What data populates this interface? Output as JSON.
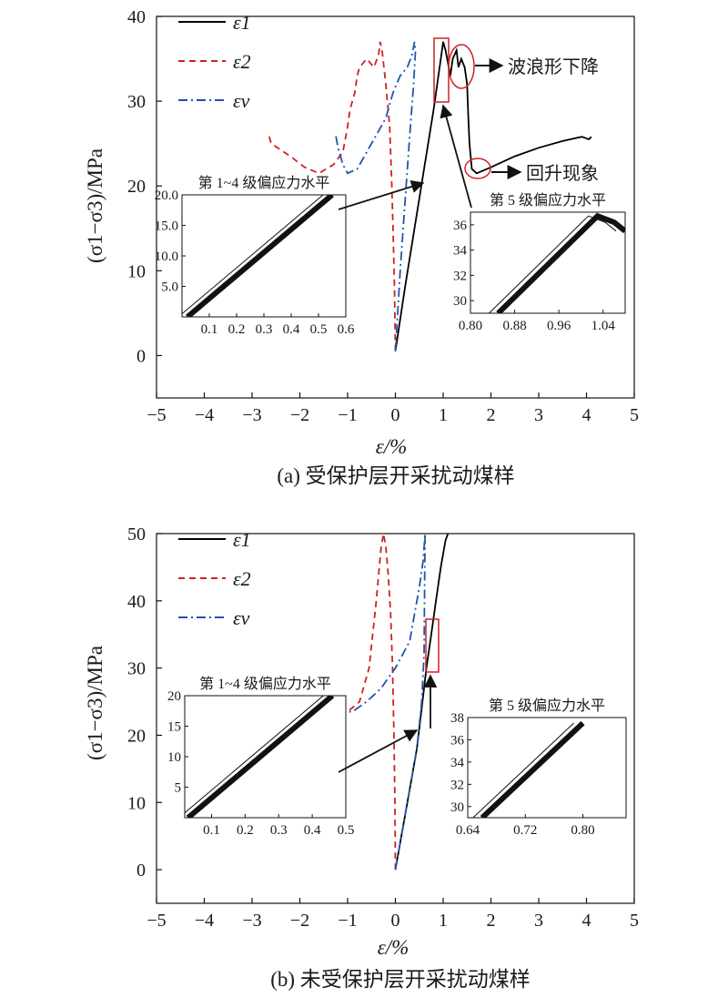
{
  "chart_data": [
    {
      "type": "line",
      "caption": "(a) 受保护层开采扰动煤样",
      "xlabel": "ε/%",
      "ylabel": "(σ1−σ3)/MPa",
      "xlim": [
        -5,
        5
      ],
      "ylim": [
        -5,
        40
      ],
      "xticks": [
        -5,
        -4,
        -3,
        -2,
        -1,
        0,
        1,
        2,
        3,
        4,
        5
      ],
      "yticks": [
        0,
        10,
        20,
        30,
        40
      ],
      "grid": false,
      "legend_position": "top-left",
      "series": [
        {
          "name": "ε1",
          "style": "solid",
          "color": "#000000",
          "x": [
            0,
            0.2,
            0.4,
            0.6,
            0.8,
            0.95,
            1.0,
            1.05,
            1.15,
            1.2,
            1.28,
            1.32,
            1.38,
            1.45,
            1.5,
            1.52,
            1.55,
            1.6,
            1.7,
            2.0,
            2.5,
            3.0,
            3.5,
            3.9,
            4.05,
            4.1
          ],
          "y": [
            0.5,
            8,
            15,
            22,
            29,
            35,
            37,
            36,
            33,
            35,
            36,
            34,
            35,
            34,
            32,
            29,
            25,
            22,
            21.5,
            22.2,
            23.5,
            24.5,
            25.3,
            25.8,
            25.5,
            25.8
          ]
        },
        {
          "name": "ε2",
          "style": "dashed",
          "color": "#cc2222",
          "x": [
            0,
            -0.02,
            -0.05,
            -0.08,
            -0.12,
            -0.2,
            -0.28,
            -0.32,
            -0.35,
            -0.45,
            -0.6,
            -0.75,
            -0.8,
            -0.85,
            -0.95,
            -1.0,
            -1.1,
            -1.3,
            -1.6,
            -1.9,
            -2.2,
            -2.6,
            -2.65
          ],
          "y": [
            0.5,
            8,
            15,
            21,
            27,
            32,
            36,
            37,
            35.5,
            34,
            35,
            34,
            33,
            31,
            29,
            27,
            24,
            22.5,
            21.5,
            22.2,
            23.5,
            25,
            26
          ]
        },
        {
          "name": "εv",
          "style": "dashdot",
          "color": "#2255aa",
          "x": [
            0,
            0.1,
            0.2,
            0.3,
            0.38,
            0.42,
            0.4,
            0.35,
            0.25,
            0.1,
            -0.05,
            -0.2,
            -0.4,
            -0.6,
            -0.8,
            -1.0,
            -1.1,
            -1.2,
            -1.25
          ],
          "y": [
            0.5,
            10,
            18,
            26,
            32,
            36,
            37,
            35.5,
            34,
            33,
            31,
            28,
            26,
            24,
            22,
            21.5,
            22.5,
            24.5,
            26
          ]
        }
      ],
      "annotations": [
        {
          "text": "波浪形下降"
        },
        {
          "text": "回升现象"
        }
      ],
      "insets": [
        {
          "title": "第 1~4 级偏应力水平",
          "xlim": [
            0,
            0.6
          ],
          "ylim": [
            0,
            20
          ],
          "xticks": [
            0.1,
            0.2,
            0.3,
            0.4,
            0.5,
            0.6
          ],
          "yticks": [
            5,
            10,
            15,
            20
          ],
          "series": [
            {
              "x": [
                0.02,
                0.55
              ],
              "y": [
                0,
                20
              ]
            }
          ]
        },
        {
          "title": "第 5 级偏应力水平",
          "xlim": [
            0.8,
            1.08
          ],
          "ylim": [
            29,
            37
          ],
          "xticks": [
            0.8,
            0.88,
            0.96,
            1.04
          ],
          "yticks": [
            30,
            32,
            34,
            36
          ],
          "series": [
            {
              "x": [
                0.85,
                1.03,
                1.06,
                1.08
              ],
              "y": [
                29,
                36.7,
                36.2,
                35.5
              ]
            }
          ]
        }
      ]
    },
    {
      "type": "line",
      "caption": "(b) 未受保护层开采扰动煤样",
      "xlabel": "ε/%",
      "ylabel": "(σ1−σ3)/MPa",
      "xlim": [
        -5,
        5
      ],
      "ylim": [
        -5,
        50
      ],
      "xticks": [
        -5,
        -4,
        -3,
        -2,
        -1,
        0,
        1,
        2,
        3,
        4,
        5
      ],
      "yticks": [
        0,
        10,
        20,
        30,
        40,
        50
      ],
      "grid": false,
      "legend_position": "top-left",
      "series": [
        {
          "name": "ε1",
          "style": "solid",
          "color": "#000000",
          "x": [
            0,
            0.15,
            0.3,
            0.45,
            0.55,
            0.65,
            0.75,
            0.85,
            0.95,
            1.05,
            1.1
          ],
          "y": [
            0,
            6,
            12,
            18,
            24,
            30,
            35,
            40,
            45,
            49,
            50
          ]
        },
        {
          "name": "ε2",
          "style": "dashed",
          "color": "#cc2222",
          "x": [
            0,
            -0.01,
            -0.03,
            -0.06,
            -0.1,
            -0.15,
            -0.2,
            -0.25,
            -0.3,
            -0.4,
            -0.55,
            -0.75,
            -1.0
          ],
          "y": [
            0,
            10,
            20,
            30,
            38,
            44,
            48,
            50,
            48,
            40,
            30,
            25,
            23.5
          ]
        },
        {
          "name": "εv",
          "style": "dashdot",
          "color": "#2255aa",
          "x": [
            0,
            0.15,
            0.3,
            0.45,
            0.55,
            0.6,
            0.62,
            0.58,
            0.5,
            0.4,
            0.3,
            0.15,
            0,
            -0.3,
            -0.6,
            -0.9,
            -1.05
          ],
          "y": [
            0,
            6,
            12,
            18,
            25,
            32,
            50,
            46,
            42,
            38,
            34,
            32,
            30,
            27,
            25,
            23.5,
            23.5
          ]
        }
      ],
      "insets": [
        {
          "title": "第 1~4 级偏应力水平",
          "xlim": [
            0.02,
            0.5
          ],
          "ylim": [
            0,
            20
          ],
          "xticks": [
            0.1,
            0.2,
            0.3,
            0.4,
            0.5
          ],
          "yticks": [
            5,
            10,
            15,
            20
          ],
          "series": [
            {
              "x": [
                0.03,
                0.46
              ],
              "y": [
                0,
                20
              ]
            }
          ]
        },
        {
          "title": "第 5 级偏应力水平",
          "xlim": [
            0.64,
            0.86
          ],
          "ylim": [
            29,
            38
          ],
          "xticks": [
            0.64,
            0.72,
            0.8
          ],
          "yticks": [
            30,
            32,
            34,
            36,
            38
          ],
          "series": [
            {
              "x": [
                0.66,
                0.8
              ],
              "y": [
                29,
                37.5
              ]
            }
          ]
        }
      ]
    }
  ]
}
